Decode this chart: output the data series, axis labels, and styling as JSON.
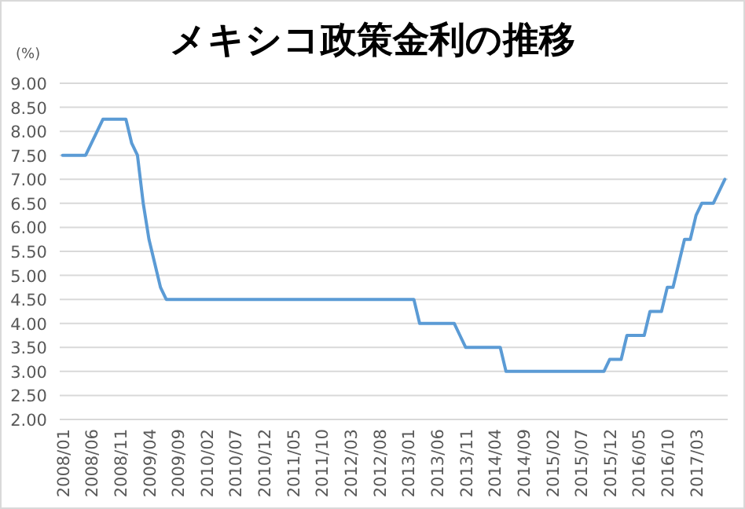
{
  "chart_data": {
    "type": "line",
    "title": "メキシコ政策金利の推移",
    "ylabel": "(%)",
    "categories": [
      "2008/01",
      null,
      null,
      null,
      null,
      "2008/06",
      null,
      null,
      null,
      null,
      "2008/11",
      null,
      null,
      null,
      null,
      "2009/04",
      null,
      null,
      null,
      null,
      "2009/09",
      null,
      null,
      null,
      null,
      "2010/02",
      null,
      null,
      null,
      null,
      "2010/07",
      null,
      null,
      null,
      null,
      "2010/12",
      null,
      null,
      null,
      null,
      "2011/05",
      null,
      null,
      null,
      null,
      "2011/10",
      null,
      null,
      null,
      null,
      "2012/03",
      null,
      null,
      null,
      null,
      "2012/08",
      null,
      null,
      null,
      null,
      "2013/01",
      null,
      null,
      null,
      null,
      "2013/06",
      null,
      null,
      null,
      null,
      "2013/11",
      null,
      null,
      null,
      null,
      "2014/04",
      null,
      null,
      null,
      null,
      "2014/09",
      null,
      null,
      null,
      null,
      "2015/02",
      null,
      null,
      null,
      null,
      "2015/07",
      null,
      null,
      null,
      null,
      "2015/12",
      null,
      null,
      null,
      null,
      "2016/05",
      null,
      null,
      null,
      null,
      "2016/10",
      null,
      null,
      null,
      null,
      "2017/03",
      null,
      null,
      null,
      null,
      null
    ],
    "series": [
      {
        "color": "#5b9bd5",
        "values": [
          7.5,
          7.5,
          7.5,
          7.5,
          7.5,
          7.75,
          8.0,
          8.25,
          8.25,
          8.25,
          8.25,
          8.25,
          7.75,
          7.5,
          6.5,
          5.75,
          5.25,
          4.75,
          4.5,
          4.5,
          4.5,
          4.5,
          4.5,
          4.5,
          4.5,
          4.5,
          4.5,
          4.5,
          4.5,
          4.5,
          4.5,
          4.5,
          4.5,
          4.5,
          4.5,
          4.5,
          4.5,
          4.5,
          4.5,
          4.5,
          4.5,
          4.5,
          4.5,
          4.5,
          4.5,
          4.5,
          4.5,
          4.5,
          4.5,
          4.5,
          4.5,
          4.5,
          4.5,
          4.5,
          4.5,
          4.5,
          4.5,
          4.5,
          4.5,
          4.5,
          4.5,
          4.5,
          4.0,
          4.0,
          4.0,
          4.0,
          4.0,
          4.0,
          4.0,
          3.75,
          3.5,
          3.5,
          3.5,
          3.5,
          3.5,
          3.5,
          3.5,
          3.0,
          3.0,
          3.0,
          3.0,
          3.0,
          3.0,
          3.0,
          3.0,
          3.0,
          3.0,
          3.0,
          3.0,
          3.0,
          3.0,
          3.0,
          3.0,
          3.0,
          3.0,
          3.25,
          3.25,
          3.25,
          3.75,
          3.75,
          3.75,
          3.75,
          4.25,
          4.25,
          4.25,
          4.75,
          4.75,
          5.25,
          5.75,
          5.75,
          6.25,
          6.5,
          6.5,
          6.5,
          6.75,
          7.0
        ]
      }
    ],
    "ylim": [
      2,
      9
    ],
    "yticks": [
      {
        "value": 2,
        "label": "2.00"
      },
      {
        "value": 2.5,
        "label": "2.50"
      },
      {
        "value": 3,
        "label": "3.00"
      },
      {
        "value": 3.5,
        "label": "3.50"
      },
      {
        "value": 4,
        "label": "4.00"
      },
      {
        "value": 4.5,
        "label": "4.50"
      },
      {
        "value": 5,
        "label": "5.00"
      },
      {
        "value": 5.5,
        "label": "5.50"
      },
      {
        "value": 6,
        "label": "6.00"
      },
      {
        "value": 6.5,
        "label": "6.50"
      },
      {
        "value": 7,
        "label": "7.00"
      },
      {
        "value": 7.5,
        "label": "7.50"
      },
      {
        "value": 8,
        "label": "8.00"
      },
      {
        "value": 8.5,
        "label": "8.50"
      },
      {
        "value": 9,
        "label": "9.00"
      }
    ],
    "grid": "y",
    "marker": "none",
    "line_style": "solid"
  }
}
